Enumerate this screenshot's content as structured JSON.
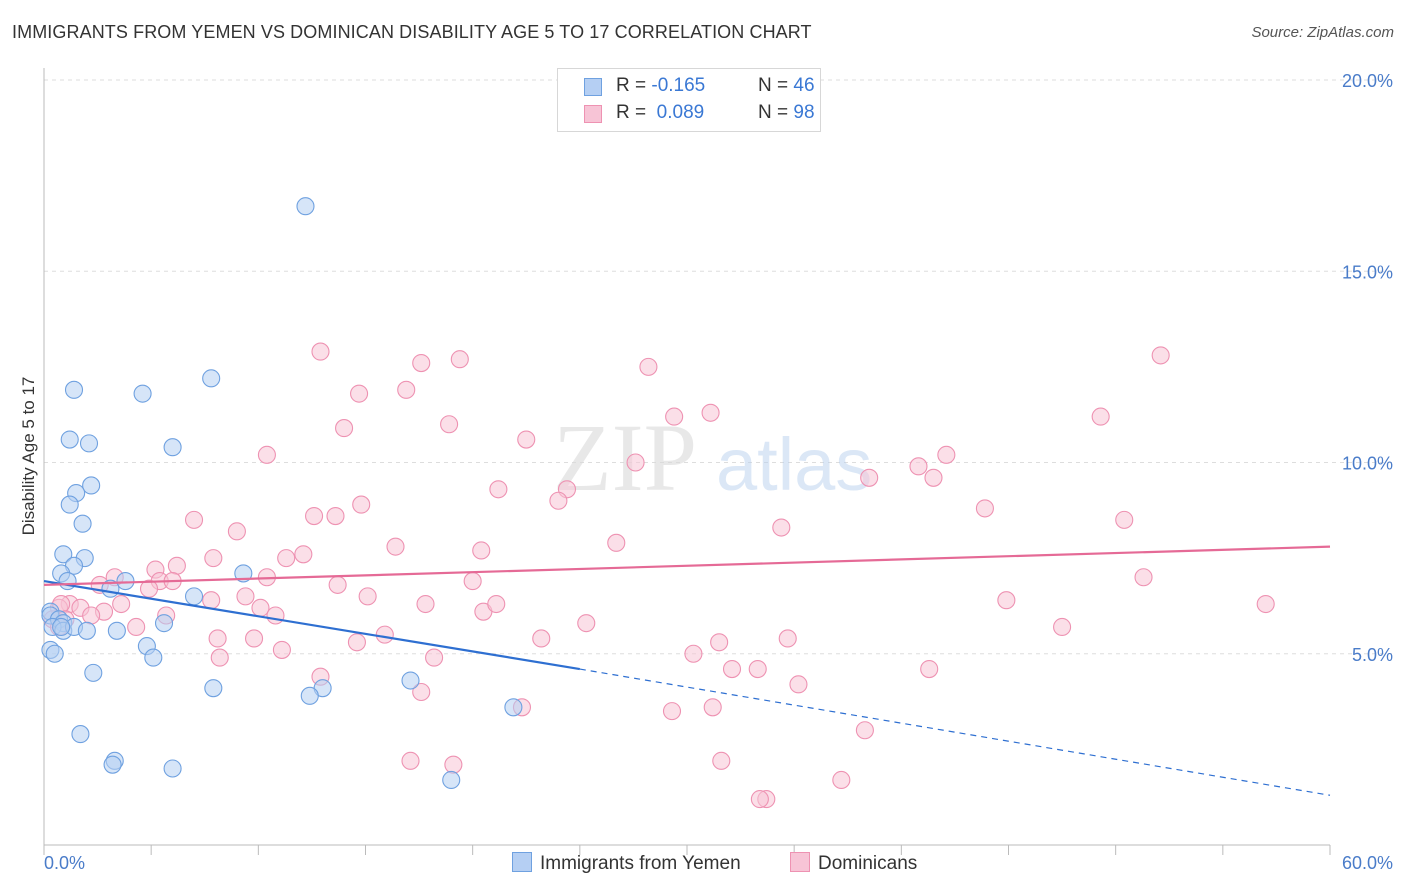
{
  "title": "IMMIGRANTS FROM YEMEN VS DOMINICAN DISABILITY AGE 5 TO 17 CORRELATION CHART",
  "source": "Source: ZipAtlas.com",
  "watermark": {
    "zip": "ZIP",
    "atlas": "atlas"
  },
  "colors": {
    "blue": "#6fa1e0",
    "blue_fill": "#b5cff3",
    "blue_line": "#2e6fd1",
    "pink": "#ee92b2",
    "pink_fill": "#f7c4d6",
    "pink_line": "#e56a96",
    "tick_text": "#4a7cc9",
    "grid": "#dddddd"
  },
  "legend": {
    "rows": [
      {
        "r_label": "R = ",
        "r_value": "-0.165",
        "n_label": "N = ",
        "n_value": "46"
      },
      {
        "r_label": "R = ",
        "r_value": " 0.089",
        "n_label": "N = ",
        "n_value": "98"
      }
    ]
  },
  "bottom_legend": [
    "Immigrants from Yemen",
    "Dominicans"
  ],
  "chart_data": {
    "type": "scatter",
    "title": "IMMIGRANTS FROM YEMEN VS DOMINICAN DISABILITY AGE 5 TO 17 CORRELATION CHART",
    "xlabel": "",
    "ylabel": "Disability Age 5 to 17",
    "xlim": [
      0,
      60
    ],
    "ylim": [
      0,
      20
    ],
    "x_tick_labels": [
      "0.0%",
      "60.0%"
    ],
    "y_ticks": [
      5,
      10,
      15,
      20
    ],
    "y_tick_labels": [
      "5.0%",
      "10.0%",
      "15.0%",
      "20.0%"
    ],
    "grid": true,
    "legend_position": "top-center",
    "series": [
      {
        "name": "Immigrants from Yemen",
        "R": -0.165,
        "N": 46,
        "trend": {
          "x": [
            0,
            25,
            60
          ],
          "y": [
            6.9,
            4.6,
            1.3
          ],
          "solid_until_x": 25
        },
        "points": [
          [
            12.2,
            16.7
          ],
          [
            7.8,
            12.2
          ],
          [
            1.4,
            11.9
          ],
          [
            4.6,
            11.8
          ],
          [
            1.2,
            10.6
          ],
          [
            2.1,
            10.5
          ],
          [
            6.0,
            10.4
          ],
          [
            2.2,
            9.4
          ],
          [
            1.5,
            9.2
          ],
          [
            1.2,
            8.9
          ],
          [
            1.8,
            8.4
          ],
          [
            0.9,
            7.6
          ],
          [
            1.9,
            7.5
          ],
          [
            1.4,
            7.3
          ],
          [
            0.8,
            7.1
          ],
          [
            9.3,
            7.1
          ],
          [
            1.1,
            6.9
          ],
          [
            3.8,
            6.9
          ],
          [
            3.1,
            6.7
          ],
          [
            7.0,
            6.5
          ],
          [
            0.3,
            6.1
          ],
          [
            0.3,
            6.0
          ],
          [
            0.7,
            5.9
          ],
          [
            5.6,
            5.8
          ],
          [
            0.9,
            5.8
          ],
          [
            0.4,
            5.7
          ],
          [
            0.9,
            5.6
          ],
          [
            1.4,
            5.7
          ],
          [
            2.0,
            5.6
          ],
          [
            3.4,
            5.6
          ],
          [
            0.8,
            5.7
          ],
          [
            4.8,
            5.2
          ],
          [
            0.3,
            5.1
          ],
          [
            0.5,
            5.0
          ],
          [
            5.1,
            4.9
          ],
          [
            2.3,
            4.5
          ],
          [
            17.1,
            4.3
          ],
          [
            7.9,
            4.1
          ],
          [
            13.0,
            4.1
          ],
          [
            12.4,
            3.9
          ],
          [
            21.9,
            3.6
          ],
          [
            1.7,
            2.9
          ],
          [
            3.3,
            2.2
          ],
          [
            3.2,
            2.1
          ],
          [
            6.0,
            2.0
          ],
          [
            19.0,
            1.7
          ]
        ]
      },
      {
        "name": "Dominicans",
        "R": 0.089,
        "N": 98,
        "trend": {
          "x": [
            0,
            60
          ],
          "y": [
            6.8,
            7.8
          ]
        },
        "points": [
          [
            12.9,
            12.9
          ],
          [
            52.1,
            12.8
          ],
          [
            19.4,
            12.7
          ],
          [
            17.6,
            12.6
          ],
          [
            28.2,
            12.5
          ],
          [
            16.9,
            11.9
          ],
          [
            14.7,
            11.8
          ],
          [
            31.1,
            11.3
          ],
          [
            29.4,
            11.2
          ],
          [
            49.3,
            11.2
          ],
          [
            18.9,
            11.0
          ],
          [
            14.0,
            10.9
          ],
          [
            22.5,
            10.6
          ],
          [
            10.4,
            10.2
          ],
          [
            42.1,
            10.2
          ],
          [
            27.6,
            10.0
          ],
          [
            40.8,
            9.9
          ],
          [
            38.5,
            9.6
          ],
          [
            41.5,
            9.6
          ],
          [
            24.4,
            9.3
          ],
          [
            21.2,
            9.3
          ],
          [
            24.0,
            9.0
          ],
          [
            14.8,
            8.9
          ],
          [
            43.9,
            8.8
          ],
          [
            12.6,
            8.6
          ],
          [
            13.6,
            8.6
          ],
          [
            7.0,
            8.5
          ],
          [
            50.4,
            8.5
          ],
          [
            34.4,
            8.3
          ],
          [
            9.0,
            8.2
          ],
          [
            26.7,
            7.9
          ],
          [
            16.4,
            7.8
          ],
          [
            20.4,
            7.7
          ],
          [
            12.1,
            7.6
          ],
          [
            7.9,
            7.5
          ],
          [
            11.3,
            7.5
          ],
          [
            6.2,
            7.3
          ],
          [
            5.2,
            7.2
          ],
          [
            3.3,
            7.0
          ],
          [
            10.4,
            7.0
          ],
          [
            5.4,
            6.9
          ],
          [
            6.0,
            6.9
          ],
          [
            2.6,
            6.8
          ],
          [
            51.3,
            7.0
          ],
          [
            20.0,
            6.9
          ],
          [
            13.7,
            6.8
          ],
          [
            4.9,
            6.7
          ],
          [
            9.4,
            6.5
          ],
          [
            15.1,
            6.5
          ],
          [
            7.8,
            6.4
          ],
          [
            44.9,
            6.4
          ],
          [
            57.0,
            6.3
          ],
          [
            3.6,
            6.3
          ],
          [
            1.2,
            6.3
          ],
          [
            0.7,
            6.2
          ],
          [
            0.8,
            6.3
          ],
          [
            1.7,
            6.2
          ],
          [
            2.8,
            6.1
          ],
          [
            2.2,
            6.0
          ],
          [
            5.7,
            6.0
          ],
          [
            10.1,
            6.2
          ],
          [
            10.8,
            6.0
          ],
          [
            17.8,
            6.3
          ],
          [
            20.5,
            6.1
          ],
          [
            21.1,
            6.3
          ],
          [
            0.4,
            5.9
          ],
          [
            1.0,
            5.9
          ],
          [
            25.3,
            5.8
          ],
          [
            0.7,
            5.7
          ],
          [
            4.3,
            5.7
          ],
          [
            47.5,
            5.7
          ],
          [
            15.9,
            5.5
          ],
          [
            8.1,
            5.4
          ],
          [
            9.8,
            5.4
          ],
          [
            23.2,
            5.4
          ],
          [
            34.7,
            5.4
          ],
          [
            14.6,
            5.3
          ],
          [
            31.5,
            5.3
          ],
          [
            11.1,
            5.1
          ],
          [
            30.3,
            5.0
          ],
          [
            8.2,
            4.9
          ],
          [
            18.2,
            4.9
          ],
          [
            32.1,
            4.6
          ],
          [
            33.3,
            4.6
          ],
          [
            41.3,
            4.6
          ],
          [
            12.9,
            4.4
          ],
          [
            35.2,
            4.2
          ],
          [
            17.6,
            4.0
          ],
          [
            29.3,
            3.5
          ],
          [
            31.2,
            3.6
          ],
          [
            22.3,
            3.6
          ],
          [
            38.3,
            3.0
          ],
          [
            17.1,
            2.2
          ],
          [
            19.1,
            2.1
          ],
          [
            31.6,
            2.2
          ],
          [
            37.2,
            1.7
          ],
          [
            33.7,
            1.2
          ],
          [
            33.4,
            1.2
          ]
        ]
      }
    ]
  }
}
